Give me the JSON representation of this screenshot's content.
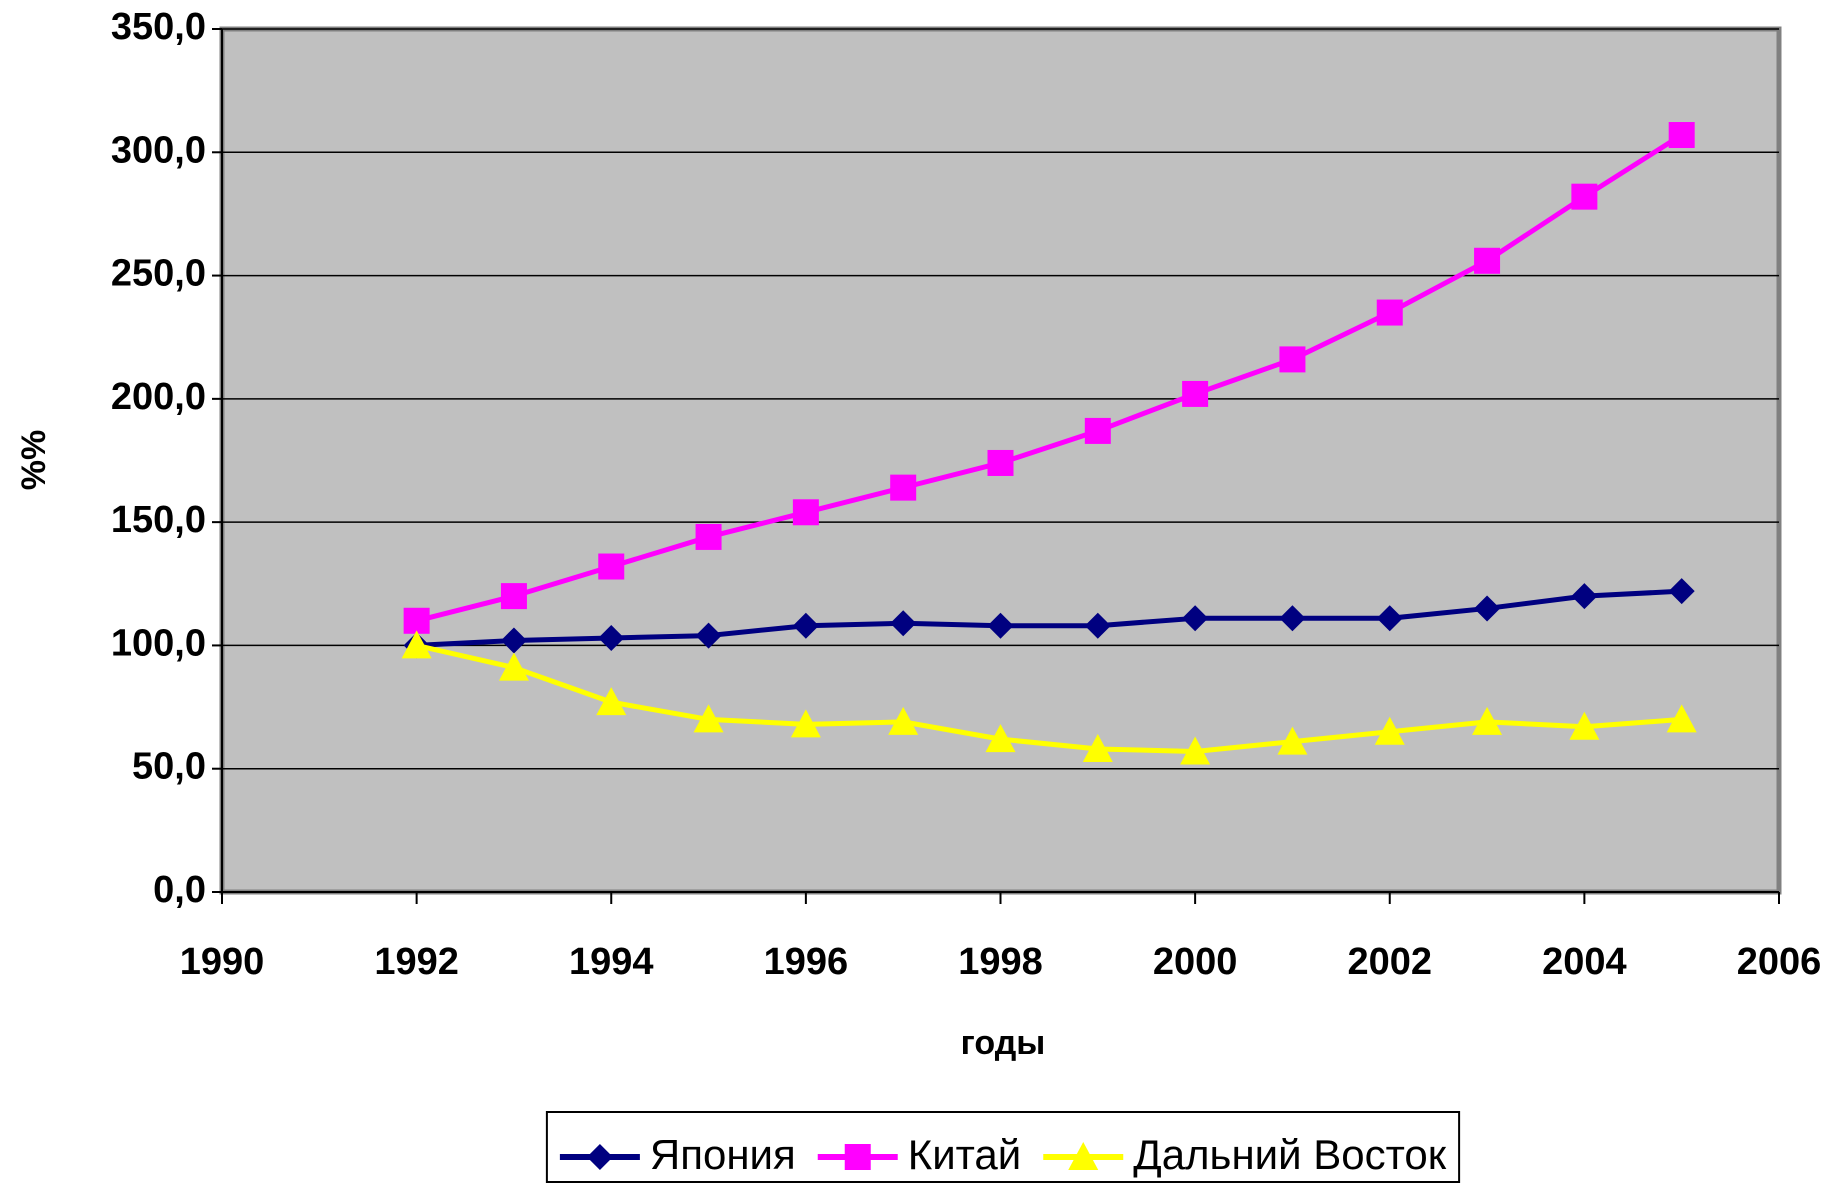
{
  "chart_data": {
    "type": "line",
    "x": [
      1992,
      1993,
      1994,
      1995,
      1996,
      1997,
      1998,
      1999,
      2000,
      2001,
      2002,
      2003,
      2004,
      2005
    ],
    "series": [
      {
        "name": "Япония",
        "color": "#000080",
        "marker": "diamond",
        "values": [
          100,
          102,
          103,
          104,
          108,
          109,
          108,
          108,
          111,
          111,
          111,
          115,
          120,
          122
        ]
      },
      {
        "name": "Китай",
        "color": "#ff00ff",
        "marker": "square",
        "values": [
          110,
          120,
          132,
          144,
          154,
          164,
          174,
          187,
          202,
          216,
          235,
          256,
          282,
          307
        ]
      },
      {
        "name": "Дальний Восток",
        "color": "#ffff00",
        "marker": "triangle",
        "values": [
          100,
          91,
          77,
          70,
          68,
          69,
          62,
          58,
          57,
          61,
          65,
          69,
          67,
          70
        ]
      }
    ],
    "xlabel": "годы",
    "ylabel": "%%",
    "xlim": [
      1990,
      2006
    ],
    "xticks": [
      1990,
      1992,
      1994,
      1996,
      1998,
      2000,
      2002,
      2004,
      2006
    ],
    "ylim": [
      0,
      350
    ],
    "yticks": [
      {
        "value": 0,
        "label": "0,0"
      },
      {
        "value": 50,
        "label": "50,0"
      },
      {
        "value": 100,
        "label": "100,0"
      },
      {
        "value": 150,
        "label": "150,0"
      },
      {
        "value": 200,
        "label": "200,0"
      },
      {
        "value": 250,
        "label": "250,0"
      },
      {
        "value": 300,
        "label": "300,0"
      },
      {
        "value": 350,
        "label": "350,0"
      }
    ],
    "grid": true,
    "plot_background": "#c0c0c0",
    "legend": "bottom"
  }
}
